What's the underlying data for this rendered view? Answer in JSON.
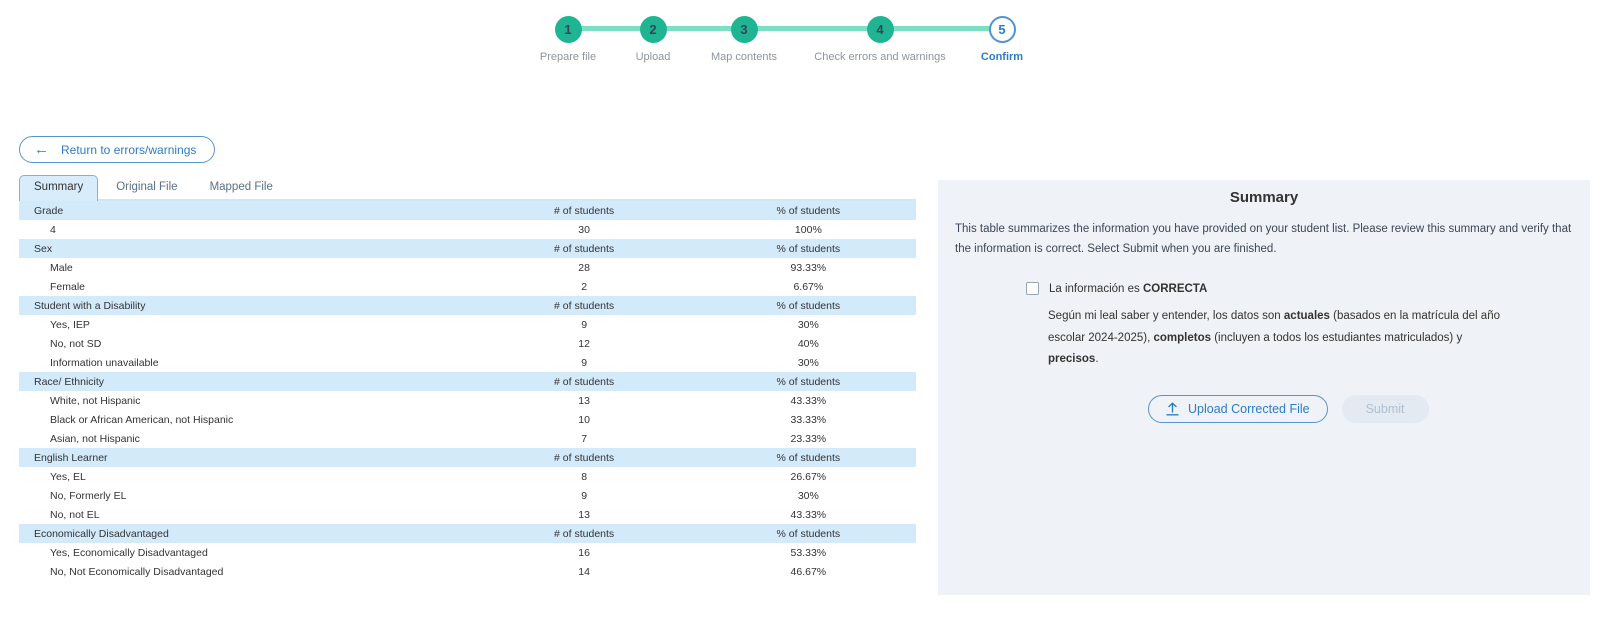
{
  "stepper": {
    "steps": [
      {
        "number": "1",
        "label": "Prepare file",
        "state": "complete"
      },
      {
        "number": "2",
        "label": "Upload",
        "state": "complete"
      },
      {
        "number": "3",
        "label": "Map contents",
        "state": "complete"
      },
      {
        "number": "4",
        "label": "Check errors and warnings",
        "state": "complete"
      },
      {
        "number": "5",
        "label": "Confirm",
        "state": "current"
      }
    ]
  },
  "toolbar": {
    "return_button": "Return to errors/warnings"
  },
  "tabs": [
    {
      "label": "Summary",
      "active": true
    },
    {
      "label": "Original File",
      "active": false
    },
    {
      "label": "Mapped File",
      "active": false
    }
  ],
  "table": {
    "count_header": "# of students",
    "pct_header": "% of students",
    "sections": [
      {
        "name": "Grade",
        "rows": [
          {
            "label": "4",
            "count": "30",
            "pct": "100%"
          }
        ]
      },
      {
        "name": "Sex",
        "rows": [
          {
            "label": "Male",
            "count": "28",
            "pct": "93.33%"
          },
          {
            "label": "Female",
            "count": "2",
            "pct": "6.67%"
          }
        ]
      },
      {
        "name": "Student with a Disability",
        "rows": [
          {
            "label": "Yes, IEP",
            "count": "9",
            "pct": "30%"
          },
          {
            "label": "No, not SD",
            "count": "12",
            "pct": "40%"
          },
          {
            "label": "Information unavailable",
            "count": "9",
            "pct": "30%"
          }
        ]
      },
      {
        "name": "Race/ Ethnicity",
        "rows": [
          {
            "label": "White, not Hispanic",
            "count": "13",
            "pct": "43.33%"
          },
          {
            "label": "Black or African American, not Hispanic",
            "count": "10",
            "pct": "33.33%"
          },
          {
            "label": "Asian, not Hispanic",
            "count": "7",
            "pct": "23.33%"
          }
        ]
      },
      {
        "name": "English Learner",
        "rows": [
          {
            "label": "Yes, EL",
            "count": "8",
            "pct": "26.67%"
          },
          {
            "label": "No, Formerly EL",
            "count": "9",
            "pct": "30%"
          },
          {
            "label": "No, not EL",
            "count": "13",
            "pct": "43.33%"
          }
        ]
      },
      {
        "name": "Economically Disadvantaged",
        "rows": [
          {
            "label": "Yes, Economically Disadvantaged",
            "count": "16",
            "pct": "53.33%"
          },
          {
            "label": "No, Not Economically Disadvantaged",
            "count": "14",
            "pct": "46.67%"
          }
        ]
      }
    ]
  },
  "panel": {
    "title": "Summary",
    "description": "This table summarizes the information you have provided on your student list. Please review this summary and verify that the information is correct. Select Submit when you are finished.",
    "checkbox_label": {
      "prefix": "La información es ",
      "bold": "CORRECTA"
    },
    "checkbox_checked": false,
    "attestation": [
      {
        "text": "Según mi leal saber y entender, los datos son ",
        "bold": false
      },
      {
        "text": "actuales",
        "bold": true
      },
      {
        "text": " (basados en la matrícula del año escolar 2024-2025), ",
        "bold": false
      },
      {
        "text": "completos",
        "bold": true
      },
      {
        "text": " (incluyen a todos los estudiantes matriculados) y ",
        "bold": false
      },
      {
        "text": "precisos",
        "bold": true
      },
      {
        "text": ".",
        "bold": false
      }
    ],
    "upload_button": "Upload Corrected File",
    "submit_button": "Submit",
    "submit_disabled": true
  },
  "colors": {
    "step_complete": "#1fb593",
    "step_connector": "#7cdfc3",
    "accent_blue": "#2d7dc2",
    "table_header_bg": "#d3eafb",
    "tab_active_bg": "#d9ecfb",
    "panel_bg": "#eff2f6"
  }
}
